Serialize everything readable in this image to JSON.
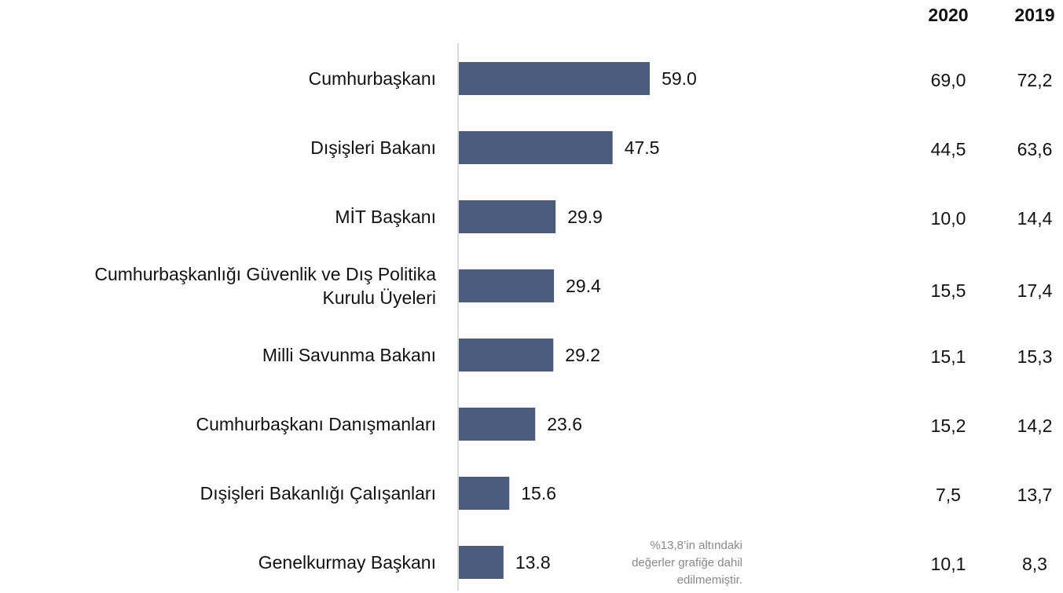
{
  "chart_data": {
    "type": "bar",
    "orientation": "horizontal",
    "categories": [
      "Cumhurbaşkanı",
      "Dışişleri Bakanı",
      "MİT Başkanı",
      "Cumhurbaşkanlığı Güvenlik ve Dış Politika\nKurulu Üyeleri",
      "Milli Savunma Bakanı",
      "Cumhurbaşkanı Danışmanları",
      "Dışişleri Bakanlığı Çalışanları",
      "Genelkurmay Başkanı"
    ],
    "values": [
      59.0,
      47.5,
      29.9,
      29.4,
      29.2,
      23.6,
      15.6,
      13.8
    ],
    "value_labels": [
      "59.0",
      "47.5",
      "29.9",
      "29.4",
      "29.2",
      "23.6",
      "15.6",
      "13.8"
    ],
    "color": "#4b5b7c",
    "annotation": [
      "%13,8’in altındaki",
      "değerler grafiğe dahil",
      "edilmemiştir."
    ],
    "side_table": {
      "headers": [
        "2020",
        "2019"
      ],
      "rows": [
        [
          "69,0",
          "72,2"
        ],
        [
          "44,5",
          "63,6"
        ],
        [
          "10,0",
          "14,4"
        ],
        [
          "15,5",
          "17,4"
        ],
        [
          "15,1",
          "15,3"
        ],
        [
          "15,2",
          "14,2"
        ],
        [
          "7,5",
          "13,7"
        ],
        [
          "10,1",
          "8,3"
        ]
      ]
    }
  }
}
